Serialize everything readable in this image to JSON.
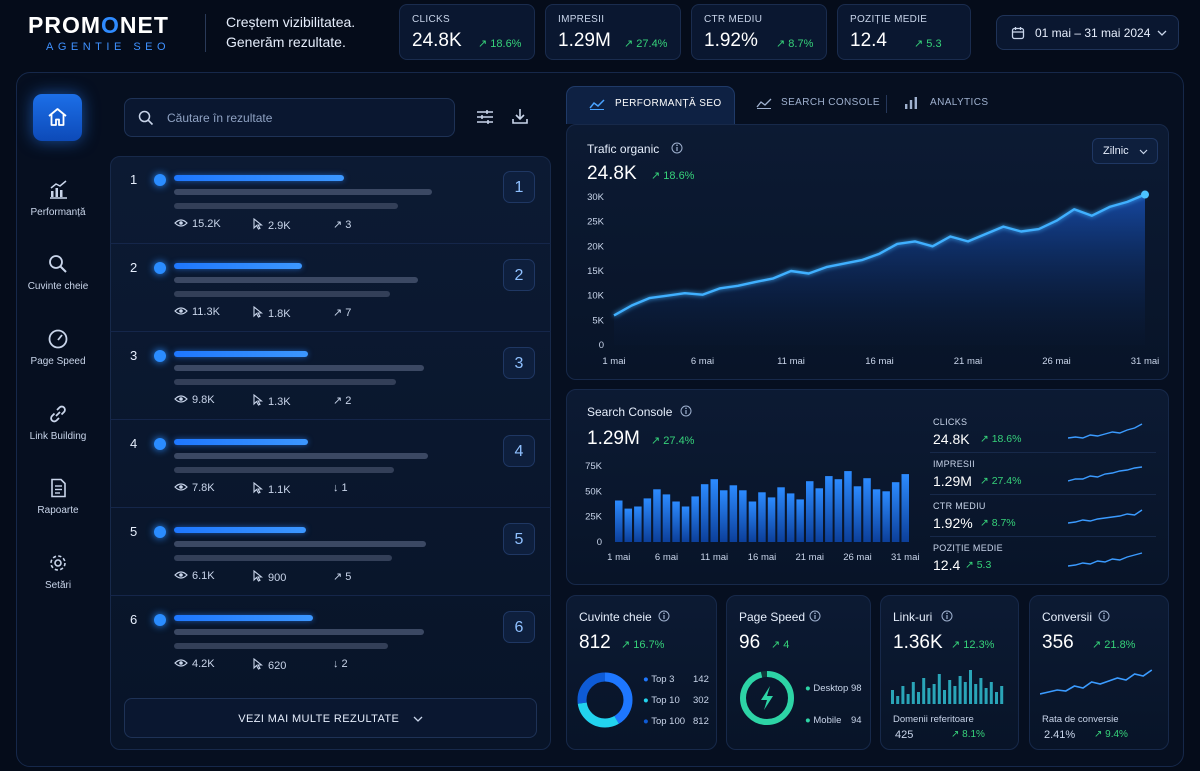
{
  "brand": {
    "name_pre": "PROM",
    "name_o": "O",
    "name_post": "NET",
    "sub": "AGENTIE SEO",
    "tagline1": "Creștem vizibilitatea.",
    "tagline2": "Generăm rezultate."
  },
  "kpis": [
    {
      "label": "CLICKS",
      "value": "24.8K",
      "change": "↗ 18.6%"
    },
    {
      "label": "IMPRESII",
      "value": "1.29M",
      "change": "↗ 27.4%"
    },
    {
      "label": "CTR MEDIU",
      "value": "1.92%",
      "change": "↗ 8.7%"
    },
    {
      "label": "POZIȚIE MEDIE",
      "value": "12.4",
      "change": "↗ 5.3"
    }
  ],
  "date_range": "01 mai – 31 mai 2024",
  "sidebar": {
    "items": [
      {
        "label": "Performanță",
        "icon": "bar-chart-icon"
      },
      {
        "label": "Cuvinte cheie",
        "icon": "search-icon"
      },
      {
        "label": "Page Speed",
        "icon": "gauge-icon"
      },
      {
        "label": "Link Building",
        "icon": "link-icon"
      },
      {
        "label": "Rapoarte",
        "icon": "document-icon"
      },
      {
        "label": "Setări",
        "icon": "gear-icon"
      }
    ]
  },
  "search": {
    "placeholder": "Căutare în rezultate"
  },
  "results": [
    {
      "rank": "1",
      "views": "15.2K",
      "clicks": "2.9K",
      "trend": "↗ 3",
      "up": true,
      "badge": "1"
    },
    {
      "rank": "2",
      "views": "11.3K",
      "clicks": "1.8K",
      "trend": "↗ 7",
      "up": true,
      "badge": "2"
    },
    {
      "rank": "3",
      "views": "9.8K",
      "clicks": "1.3K",
      "trend": "↗ 2",
      "up": true,
      "badge": "3"
    },
    {
      "rank": "4",
      "views": "7.8K",
      "clicks": "1.1K",
      "trend": "↓ 1",
      "up": false,
      "badge": "4"
    },
    {
      "rank": "5",
      "views": "6.1K",
      "clicks": "900",
      "trend": "↗ 5",
      "up": true,
      "badge": "5"
    },
    {
      "rank": "6",
      "views": "4.2K",
      "clicks": "620",
      "trend": "↓ 2",
      "up": false,
      "badge": "6"
    }
  ],
  "more_label": "VEZI MAI MULTE REZULTATE",
  "tabs": [
    {
      "label": "PERFORMANȚĂ SEO",
      "active": true
    },
    {
      "label": "SEARCH CONSOLE",
      "active": false
    },
    {
      "label": "ANALYTICS",
      "active": false
    }
  ],
  "traffic": {
    "title": "Trafic organic",
    "value": "24.8K",
    "change": "↗ 18.6%",
    "select": "Zilnic"
  },
  "search_console": {
    "title": "Search Console",
    "value": "1.29M",
    "change": "↗ 27.4%",
    "metrics": [
      {
        "label": "CLICKS",
        "value": "24.8K",
        "change": "↗ 18.6%"
      },
      {
        "label": "IMPRESII",
        "value": "1.29M",
        "change": "↗ 27.4%"
      },
      {
        "label": "CTR MEDIU",
        "value": "1.92%",
        "change": "↗ 8.7%"
      },
      {
        "label": "POZIȚIE MEDIE",
        "value": "12.4",
        "change": "↗ 5.3"
      }
    ]
  },
  "cards": {
    "keywords": {
      "title": "Cuvinte cheie",
      "value": "812",
      "change": "↗ 16.7%",
      "legend": [
        {
          "label": "Top 3",
          "value": "142"
        },
        {
          "label": "Top 10",
          "value": "302"
        },
        {
          "label": "Top 100",
          "value": "812"
        }
      ]
    },
    "speed": {
      "title": "Page Speed",
      "value": "96",
      "change": "↗ 4",
      "legend": [
        {
          "label": "Desktop",
          "value": "98"
        },
        {
          "label": "Mobile",
          "value": "94"
        }
      ]
    },
    "links": {
      "title": "Link-uri",
      "value": "1.36K",
      "change": "↗ 12.3%",
      "sub_label": "Domenii referitoare",
      "sub_value": "425",
      "sub_change": "↗ 8.1%"
    },
    "conv": {
      "title": "Conversii",
      "value": "356",
      "change": "↗ 21.8%",
      "sub_label": "Rata de conversie",
      "sub_value": "2.41%",
      "sub_change": "↗ 9.4%"
    }
  },
  "chart_data": [
    {
      "type": "area",
      "title": "Trafic organic",
      "x": [
        "1 mai",
        "2 mai",
        "3 mai",
        "4 mai",
        "5 mai",
        "6 mai",
        "7 mai",
        "8 mai",
        "9 mai",
        "10 mai",
        "11 mai",
        "12 mai",
        "13 mai",
        "14 mai",
        "15 mai",
        "16 mai",
        "17 mai",
        "18 mai",
        "19 mai",
        "20 mai",
        "21 mai",
        "22 mai",
        "23 mai",
        "24 mai",
        "25 mai",
        "26 mai",
        "27 mai",
        "28 mai",
        "29 mai",
        "30 mai",
        "31 mai"
      ],
      "values": [
        6000,
        8000,
        9500,
        10000,
        10500,
        10200,
        11500,
        12000,
        12800,
        13500,
        15000,
        14500,
        15800,
        16500,
        17200,
        18500,
        20500,
        21000,
        20000,
        22000,
        21000,
        22500,
        24000,
        23000,
        23500,
        25200,
        27500,
        26200,
        28000,
        29000,
        30500
      ],
      "xticks": [
        "1 mai",
        "6 mai",
        "11 mai",
        "16 mai",
        "21 mai",
        "26 mai",
        "31 mai"
      ],
      "yticks": [
        "0",
        "5K",
        "10K",
        "15K",
        "20K",
        "25K",
        "30K"
      ],
      "ylim": [
        0,
        30000
      ],
      "grid": false
    },
    {
      "type": "bar",
      "title": "Search Console",
      "x": [
        "1 mai",
        "2 mai",
        "3 mai",
        "4 mai",
        "5 mai",
        "6 mai",
        "7 mai",
        "8 mai",
        "9 mai",
        "10 mai",
        "11 mai",
        "12 mai",
        "13 mai",
        "14 mai",
        "15 mai",
        "16 mai",
        "17 mai",
        "18 mai",
        "19 mai",
        "20 mai",
        "21 mai",
        "22 mai",
        "23 mai",
        "24 mai",
        "25 mai",
        "26 mai",
        "27 mai",
        "28 mai",
        "29 mai",
        "30 mai",
        "31 mai"
      ],
      "values": [
        41000,
        33000,
        35000,
        43000,
        52000,
        47000,
        40000,
        35000,
        45000,
        57000,
        62000,
        51000,
        56000,
        51000,
        40000,
        49000,
        44000,
        54000,
        48000,
        42000,
        60000,
        53000,
        65000,
        62000,
        70000,
        55000,
        63000,
        52000,
        50000,
        59000,
        67000
      ],
      "xticks": [
        "1 mai",
        "6 mai",
        "11 mai",
        "16 mai",
        "21 mai",
        "26 mai",
        "31 mai"
      ],
      "yticks": [
        "0",
        "25K",
        "50K",
        "75K"
      ],
      "ylim": [
        0,
        75000
      ]
    }
  ]
}
